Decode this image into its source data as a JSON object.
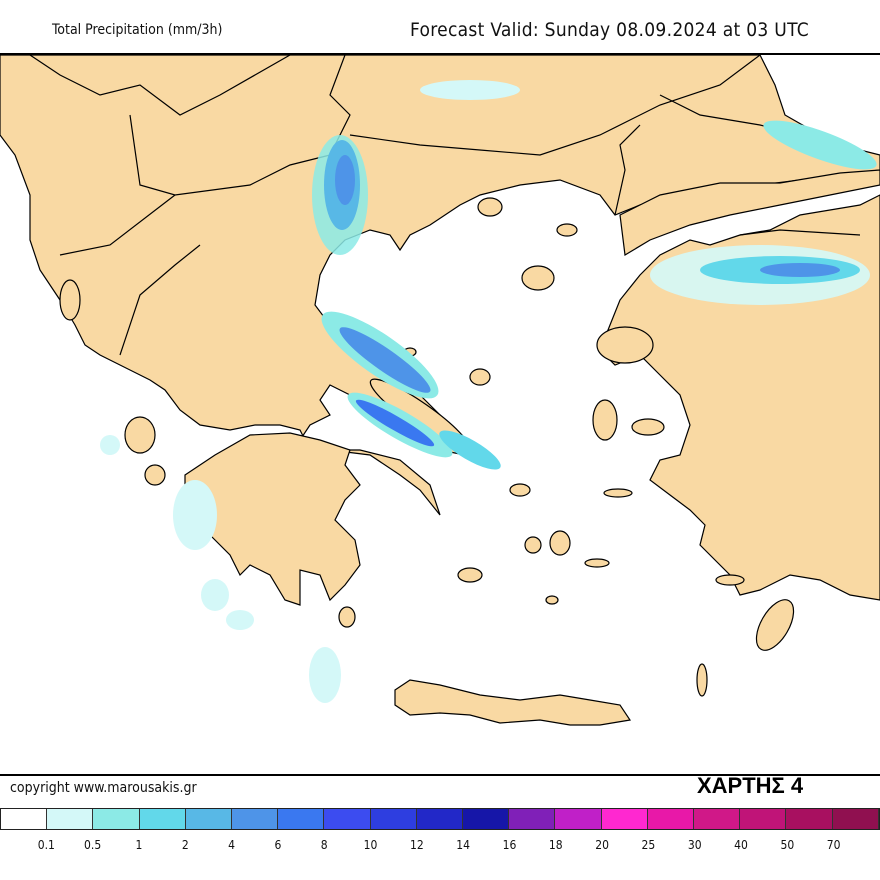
{
  "header": {
    "title": "Total Precipitation (mm/3h)",
    "valid": "Forecast Valid:  Sunday 08.09.2024 at 03 UTC"
  },
  "map": {
    "label": "ΧΑΡΤΗΣ 4",
    "land_color": "#f9d9a3",
    "sea_color": "#ffffff",
    "border_color": "#000000"
  },
  "copyright": "copyright www.marousakis.gr",
  "legend": {
    "colors": [
      "#ffffff",
      "#d4f8f8",
      "#8ceae6",
      "#62d8ea",
      "#58b8e6",
      "#4e94e8",
      "#3a78f0",
      "#3c4cf0",
      "#2e3ee0",
      "#2228c8",
      "#1616a8",
      "#8020b8",
      "#c020c8",
      "#ff28d0",
      "#e818a8",
      "#d01888",
      "#c01478",
      "#a81060",
      "#901050"
    ],
    "ticks": [
      "0.1",
      "0.5",
      "1",
      "2",
      "4",
      "6",
      "8",
      "10",
      "12",
      "14",
      "16",
      "18",
      "20",
      "25",
      "30",
      "40",
      "50",
      "70"
    ]
  }
}
